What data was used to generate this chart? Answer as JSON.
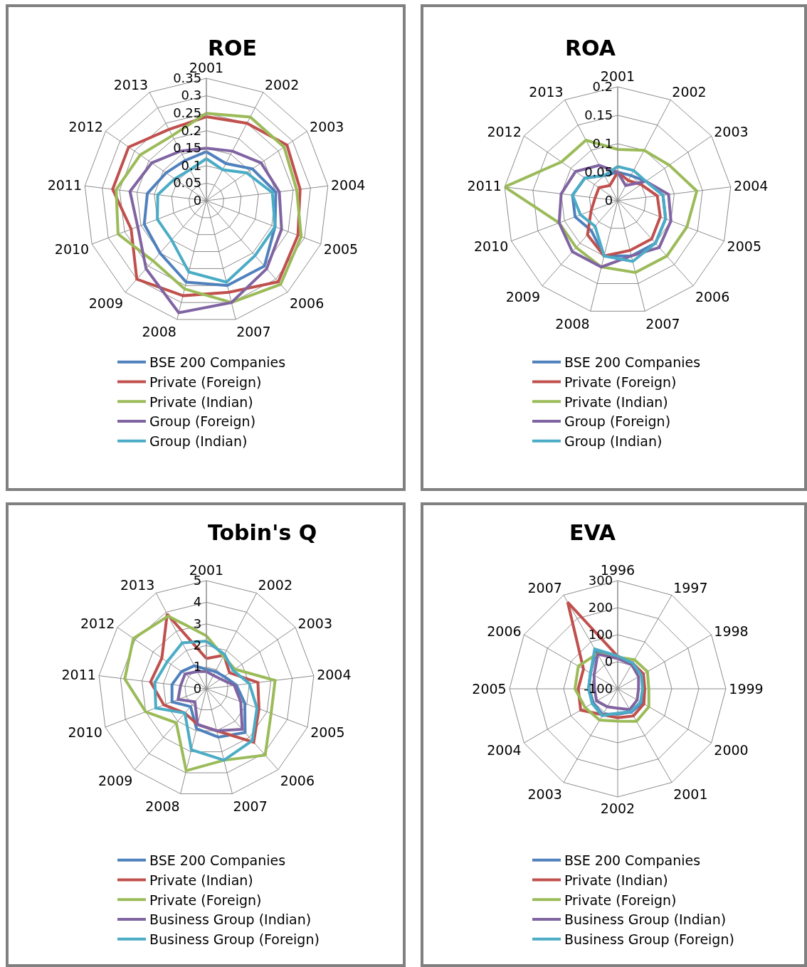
{
  "chart_data": [
    {
      "type": "radar",
      "title": "ROE",
      "categories": [
        "2001",
        "2002",
        "2003",
        "2004",
        "2005",
        "2006",
        "2007",
        "2008",
        "2009",
        "2010",
        "2011",
        "2012",
        "2013"
      ],
      "ylim": [
        0,
        0.35
      ],
      "yticks": [
        0,
        0.05,
        0.1,
        0.15,
        0.2,
        0.25,
        0.3,
        0.35
      ],
      "grid": true,
      "legend": "bottom",
      "series": [
        {
          "name": "BSE 200 Companies",
          "color": "#4f81bd",
          "values": [
            0.14,
            0.12,
            0.16,
            0.2,
            0.21,
            0.25,
            0.25,
            0.24,
            0.2,
            0.19,
            0.17,
            0.14,
            0.13
          ]
        },
        {
          "name": "Private (Foreign)",
          "color": "#c0504d",
          "values": [
            0.24,
            0.25,
            0.28,
            0.27,
            0.28,
            0.31,
            0.27,
            0.28,
            0.3,
            0.23,
            0.27,
            0.27,
            0.23
          ]
        },
        {
          "name": "Private (Indian)",
          "color": "#9bbb59",
          "values": [
            0.25,
            0.27,
            0.27,
            0.26,
            0.29,
            0.32,
            0.3,
            0.26,
            0.23,
            0.27,
            0.26,
            0.23,
            0.21
          ]
        },
        {
          "name": "Group (Foreign)",
          "color": "#8064a2",
          "values": [
            0.15,
            0.16,
            0.19,
            0.21,
            0.23,
            0.26,
            0.3,
            0.33,
            0.26,
            0.21,
            0.22,
            0.19,
            0.16
          ]
        },
        {
          "name": "Group (Indian)",
          "color": "#4bacc6",
          "values": [
            0.12,
            0.1,
            0.14,
            0.19,
            0.21,
            0.21,
            0.24,
            0.21,
            0.15,
            0.15,
            0.14,
            0.11,
            0.1
          ]
        }
      ]
    },
    {
      "type": "radar",
      "title": "ROA",
      "categories": [
        "2001",
        "2002",
        "2003",
        "2004",
        "2005",
        "2006",
        "2007",
        "2008",
        "2009",
        "2010",
        "2011",
        "2012",
        "2013"
      ],
      "ylim": [
        0,
        0.2
      ],
      "yticks": [
        0,
        0.05,
        0.1,
        0.15,
        0.2
      ],
      "grid": true,
      "legend": "bottom",
      "series": [
        {
          "name": "BSE 200 Companies",
          "color": "#4f81bd",
          "values": [
            0.05,
            0.05,
            0.06,
            0.08,
            0.09,
            0.1,
            0.1,
            0.1,
            0.07,
            0.08,
            0.08,
            0.07,
            0.05
          ]
        },
        {
          "name": "Private (Foreign)",
          "color": "#c0504d",
          "values": [
            0.05,
            0.04,
            0.05,
            0.07,
            0.08,
            0.09,
            0.09,
            0.1,
            0.08,
            0.05,
            0.04,
            0.04,
            0.03
          ]
        },
        {
          "name": "Private (Indian)",
          "color": "#9bbb59",
          "values": [
            0.09,
            0.1,
            0.11,
            0.14,
            0.13,
            0.13,
            0.13,
            0.12,
            0.11,
            0.11,
            0.2,
            0.12,
            0.12
          ]
        },
        {
          "name": "Group (Foreign)",
          "color": "#8064a2",
          "values": [
            0.05,
            0.03,
            0.06,
            0.09,
            0.1,
            0.11,
            0.1,
            0.12,
            0.12,
            0.11,
            0.1,
            0.09,
            0.07
          ]
        },
        {
          "name": "Group (Indian)",
          "color": "#4bacc6",
          "values": [
            0.06,
            0.06,
            0.06,
            0.08,
            0.09,
            0.1,
            0.11,
            0.1,
            0.06,
            0.07,
            0.08,
            0.07,
            0.05
          ]
        }
      ]
    },
    {
      "type": "radar",
      "title": "Tobin's Q",
      "categories": [
        "2001",
        "2002",
        "2003",
        "2004",
        "2005",
        "2006",
        "2007",
        "2008",
        "2009",
        "2010",
        "2011",
        "2012",
        "2013"
      ],
      "ylim": [
        0,
        5
      ],
      "yticks": [
        0,
        1,
        2,
        3,
        4,
        5
      ],
      "grid": true,
      "legend": "bottom",
      "series": [
        {
          "name": "BSE 200 Companies",
          "color": "#4f81bd",
          "values": [
            0.9,
            0.9,
            1.0,
            1.4,
            1.9,
            2.7,
            2.3,
            1.9,
            1.1,
            1.7,
            1.6,
            1.4,
            1.2
          ]
        },
        {
          "name": "Private (Indian)",
          "color": "#c0504d",
          "values": [
            1.4,
            1.75,
            1.3,
            2.4,
            2.6,
            3.3,
            2.0,
            1.7,
            1.5,
            2.1,
            2.6,
            2.5,
            3.9
          ]
        },
        {
          "name": "Private (Foreign)",
          "color": "#9bbb59",
          "values": [
            2.45,
            1.7,
            1.6,
            3.2,
            3.2,
            4.1,
            3.4,
            3.9,
            2.1,
            3.0,
            3.8,
            4.1,
            3.8
          ]
        },
        {
          "name": "Business Group (Indian)",
          "color": "#8064a2",
          "values": [
            0.8,
            0.7,
            0.8,
            1.3,
            1.7,
            2.5,
            2.0,
            1.7,
            0.8,
            1.4,
            1.2,
            1.2,
            0.9
          ]
        },
        {
          "name": "Business Group (Foreign)",
          "color": "#4bacc6",
          "values": [
            2.2,
            1.8,
            1.5,
            2.0,
            2.5,
            3.2,
            3.4,
            2.9,
            1.5,
            2.5,
            2.4,
            2.2,
            2.4
          ]
        }
      ]
    },
    {
      "type": "radar",
      "title": "EVA",
      "categories": [
        "1996",
        "1997",
        "1998",
        "1999",
        "2000",
        "2001",
        "2002",
        "2003",
        "2004",
        "2005",
        "2006",
        "2007"
      ],
      "ylim": [
        -100,
        300
      ],
      "yticks": [
        -100,
        0,
        100,
        200,
        300
      ],
      "grid": true,
      "legend": "bottom",
      "series": [
        {
          "name": "BSE 200 Companies",
          "color": "#4f81bd",
          "values": [
            20,
            10,
            3,
            -5,
            5,
            0,
            -8,
            10,
            5,
            8,
            16,
            62
          ]
        },
        {
          "name": "Private (Indian)",
          "color": "#c0504d",
          "values": [
            20,
            10,
            10,
            0,
            12,
            16,
            7,
            11,
            58,
            46,
            46,
            270
          ]
        },
        {
          "name": "Private (Foreign)",
          "color": "#9bbb59",
          "values": [
            17,
            24,
            27,
            15,
            33,
            39,
            20,
            34,
            39,
            58,
            68,
            50
          ]
        },
        {
          "name": "Business Group (Indian)",
          "color": "#8064a2",
          "values": [
            12,
            3,
            -11,
            -23,
            -17,
            -11,
            -28,
            -23,
            -10,
            -14,
            1,
            48
          ]
        },
        {
          "name": "Business Group (Foreign)",
          "color": "#4bacc6",
          "values": [
            21,
            10,
            1,
            -8,
            -2,
            -3,
            -10,
            15,
            9,
            8,
            16,
            70
          ]
        }
      ]
    }
  ]
}
